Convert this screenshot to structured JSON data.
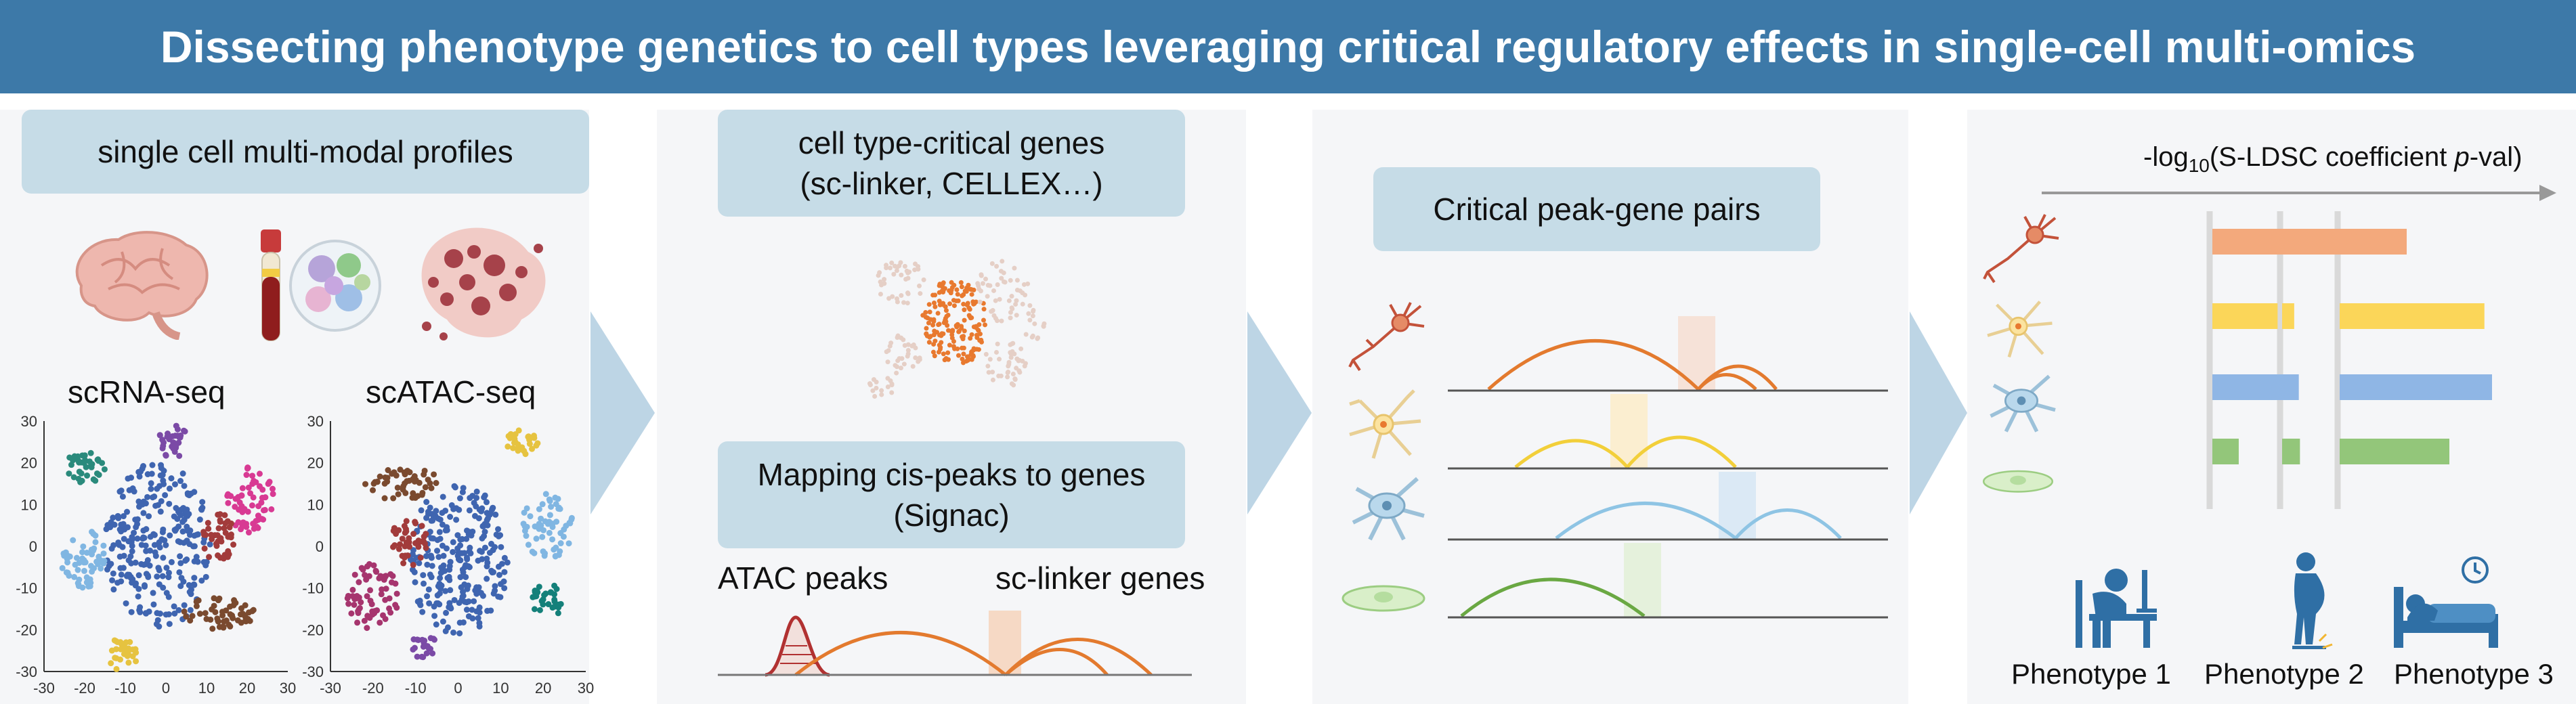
{
  "title": "Dissecting phenotype genetics to cell types leveraging critical regulatory effects in single-cell multi-omics",
  "panel1": {
    "header": "single cell multi-modal profiles",
    "scrna_label": "scRNA-seq",
    "scatac_label": "scATAC-seq",
    "y_ticks": [
      "30",
      "20",
      "10",
      "0",
      "-10",
      "-20",
      "-30"
    ],
    "x_ticks": [
      "-30",
      "-20",
      "-10",
      "0",
      "10",
      "20",
      "30"
    ],
    "cluster_colors": [
      "#3f65b0",
      "#2a8a7c",
      "#7b4aa6",
      "#d83a93",
      "#a23b3b",
      "#7a4a2f",
      "#80b6e2",
      "#e6c340",
      "#a6356e",
      "#14807a"
    ]
  },
  "panel2": {
    "header_line1": "cell type-critical genes",
    "header_line2": "(sc-linker, CELLEX…)",
    "mapping_line1": "Mapping cis-peaks to genes",
    "mapping_line2": "(Signac)",
    "atac_label": "ATAC peaks",
    "genes_label": "sc-linker genes",
    "highlight_color": "#e8792f"
  },
  "panel3": {
    "header": "Critical peak-gene pairs",
    "track_colors": [
      "#e37a2e",
      "#f2cf3a",
      "#8ec4e4",
      "#6aa843"
    ]
  },
  "panel4": {
    "axis_label_prefix": "-log",
    "axis_label_sub": "10",
    "axis_label_mid": "(S-LDSC coefficient ",
    "axis_label_italic": "p",
    "axis_label_suffix": "-val)",
    "phenotypes": [
      "Phenotype 1",
      "Phenotype 2",
      "Phenotype 3"
    ],
    "bar_colors": [
      "#f3a97c",
      "#fbd659",
      "#8fb6e5",
      "#93c67a"
    ],
    "bar_values": [
      [
        1.0,
        0.39,
        0.44
      ],
      [
        0.47,
        0.21,
        0.95
      ],
      [
        0.61,
        0.29,
        1.0
      ],
      [
        0.19,
        0.31,
        0.72
      ]
    ]
  }
}
